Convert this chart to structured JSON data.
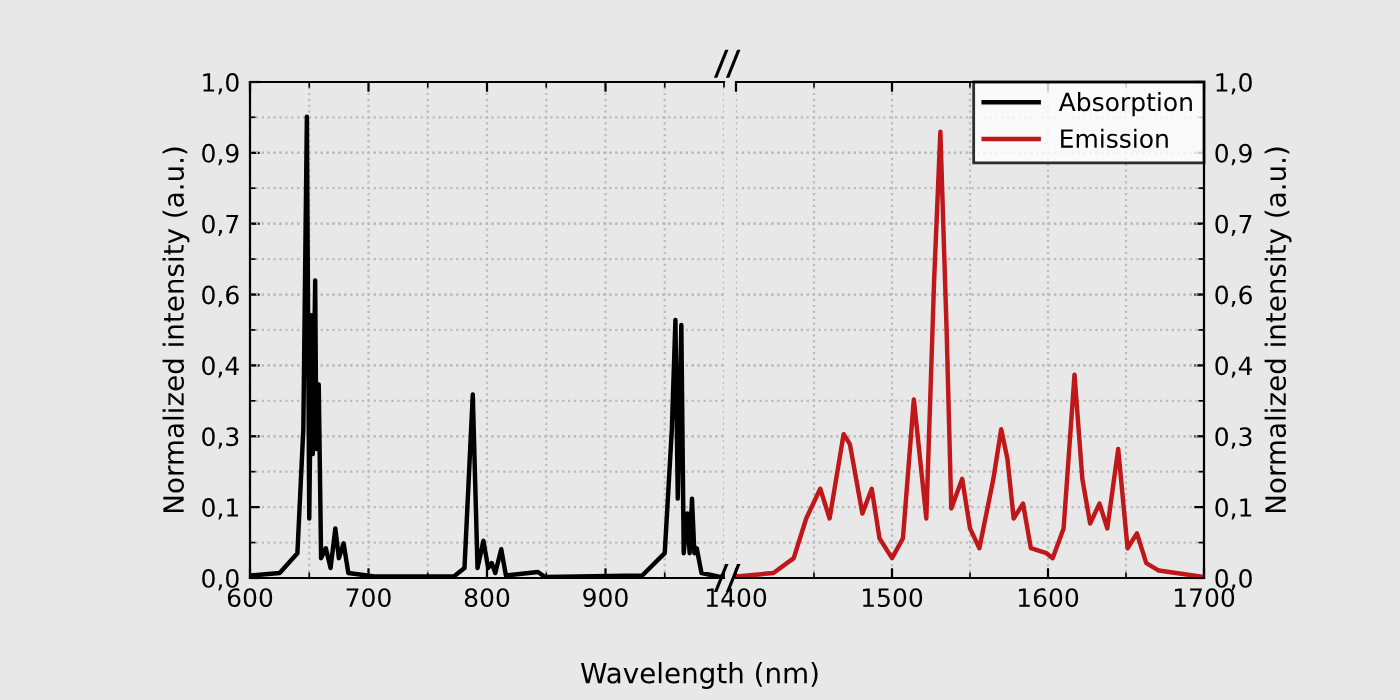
{
  "chart_data": [
    {
      "type": "line",
      "xlabel": "Wavelength (nm)",
      "ylabel": "Normalized intensity (a.u.)",
      "xlim": [
        600,
        1000
      ],
      "xticks": [
        600,
        700,
        800,
        900
      ],
      "ylim": [
        0,
        1
      ],
      "yticks": [
        {
          "value": 0,
          "label": "0,0"
        },
        {
          "value": 0.1429,
          "label": "0,1"
        },
        {
          "value": 0.2857,
          "label": "0,3"
        },
        {
          "value": 0.4286,
          "label": "0,4"
        },
        {
          "value": 0.5714,
          "label": "0,6"
        },
        {
          "value": 0.7143,
          "label": "0,7"
        },
        {
          "value": 0.8571,
          "label": "0,9"
        },
        {
          "value": 1,
          "label": "1,0"
        }
      ],
      "grid": true,
      "marker": "none",
      "line_style": "solid",
      "series": [
        {
          "name": "Absorption",
          "color": "#000000",
          "x": [
            600,
            625,
            640,
            645,
            648,
            650,
            652,
            653,
            655,
            656,
            658,
            660,
            664,
            668,
            672,
            675,
            679,
            683,
            705,
            772,
            781,
            788,
            792,
            797,
            801,
            804,
            807,
            812,
            816,
            843,
            849,
            931,
            950,
            956,
            959,
            961,
            964,
            966,
            969,
            971,
            973,
            975,
            977,
            981,
            995,
            1000
          ],
          "values": [
            0.005,
            0.01,
            0.05,
            0.3,
            0.93,
            0.12,
            0.53,
            0.25,
            0.6,
            0.26,
            0.39,
            0.04,
            0.06,
            0.02,
            0.1,
            0.04,
            0.07,
            0.01,
            0.003,
            0.003,
            0.02,
            0.37,
            0.02,
            0.075,
            0.02,
            0.03,
            0.01,
            0.058,
            0.005,
            0.012,
            0.002,
            0.005,
            0.05,
            0.3,
            0.52,
            0.16,
            0.51,
            0.05,
            0.13,
            0.05,
            0.16,
            0.05,
            0.06,
            0.01,
            0.003,
            0.002
          ]
        }
      ]
    },
    {
      "type": "line",
      "y2label": "Normalized intensity (a.u.)",
      "xlim": [
        1400,
        1700
      ],
      "xticks": [
        1400,
        1500,
        1600,
        1700
      ],
      "y2lim": [
        0,
        1
      ],
      "y2ticks": [
        {
          "value": 0,
          "label": "0,0"
        },
        {
          "value": 0.1429,
          "label": "0,1"
        },
        {
          "value": 0.2857,
          "label": "0,3"
        },
        {
          "value": 0.4286,
          "label": "0,4"
        },
        {
          "value": 0.5714,
          "label": "0,6"
        },
        {
          "value": 0.7143,
          "label": "0,7"
        },
        {
          "value": 0.8571,
          "label": "0,9"
        },
        {
          "value": 1,
          "label": "1,0"
        }
      ],
      "grid": true,
      "legend": "top right",
      "marker": "none",
      "line_style": "solid",
      "series": [
        {
          "name": "Emission",
          "color": "#c0171b",
          "axis": "y2",
          "x": [
            1400,
            1424,
            1437,
            1445,
            1454,
            1460,
            1469,
            1473,
            1481,
            1487,
            1492,
            1500,
            1507,
            1514,
            1522,
            1527,
            1531,
            1535,
            1538,
            1545,
            1550,
            1556,
            1565,
            1570,
            1574,
            1578,
            1584,
            1589,
            1599,
            1603,
            1610,
            1617,
            1622,
            1627,
            1633,
            1638,
            1645,
            1651,
            1657,
            1663,
            1671,
            1700
          ],
          "values": [
            0.003,
            0.01,
            0.04,
            0.12,
            0.18,
            0.12,
            0.29,
            0.27,
            0.13,
            0.18,
            0.08,
            0.04,
            0.08,
            0.36,
            0.12,
            0.6,
            0.9,
            0.5,
            0.14,
            0.2,
            0.1,
            0.06,
            0.2,
            0.3,
            0.24,
            0.12,
            0.15,
            0.06,
            0.05,
            0.04,
            0.1,
            0.41,
            0.2,
            0.11,
            0.15,
            0.1,
            0.26,
            0.06,
            0.09,
            0.03,
            0.015,
            0.002
          ]
        }
      ]
    }
  ]
}
